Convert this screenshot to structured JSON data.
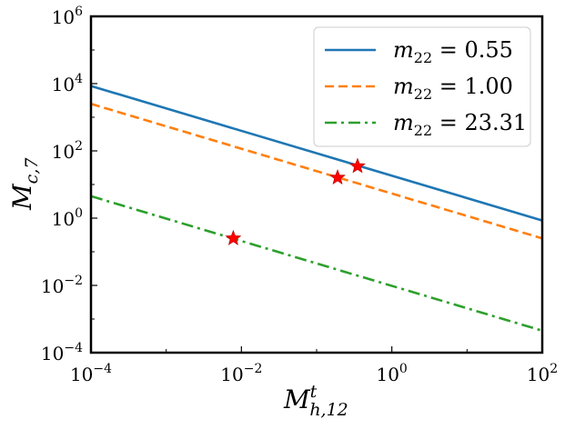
{
  "chart_data": {
    "type": "line",
    "x_scale": "log",
    "y_scale": "log",
    "xlim": [
      0.0001,
      100
    ],
    "ylim": [
      0.0001,
      1000000
    ],
    "x_ticks": [
      {
        "value": 0.0001,
        "base": "10",
        "exp": "−4"
      },
      {
        "value": 0.01,
        "base": "10",
        "exp": "−2"
      },
      {
        "value": 1,
        "base": "10",
        "exp": "0"
      },
      {
        "value": 100,
        "base": "10",
        "exp": "2"
      }
    ],
    "y_ticks": [
      {
        "value": 0.0001,
        "base": "10",
        "exp": "−4"
      },
      {
        "value": 0.01,
        "base": "10",
        "exp": "−2"
      },
      {
        "value": 1,
        "base": "10",
        "exp": "0"
      },
      {
        "value": 100,
        "base": "10",
        "exp": "2"
      },
      {
        "value": 10000,
        "base": "10",
        "exp": "4"
      },
      {
        "value": 1000000,
        "base": "10",
        "exp": "6"
      }
    ],
    "xlabel": {
      "main": "M",
      "sup": "t",
      "sub": "h,12"
    },
    "ylabel": {
      "main": "M",
      "sub": "c,7"
    },
    "legend_position": "top-right",
    "series": [
      {
        "name": "m22 = 0.55",
        "label_main": "m",
        "label_sub": "22",
        "label_value": " = 0.55",
        "color": "#1f77b4",
        "style": "solid",
        "points": [
          [
            0.0001,
            8500
          ],
          [
            100,
            0.85
          ]
        ]
      },
      {
        "name": "m22 = 1.00",
        "label_main": "m",
        "label_sub": "22",
        "label_value": " = 1.00",
        "color": "#ff7f0e",
        "style": "dashed",
        "points": [
          [
            0.0001,
            2500
          ],
          [
            100,
            0.25
          ]
        ]
      },
      {
        "name": "m22 = 23.31",
        "label_main": "m",
        "label_sub": "22",
        "label_value": " = 23.31",
        "color": "#2ca02c",
        "style": "dashdot",
        "points": [
          [
            0.0001,
            4.5
          ],
          [
            100,
            0.00045
          ]
        ]
      }
    ],
    "markers": {
      "shape": "star",
      "color": "#ff0000",
      "points": [
        [
          0.35,
          35
        ],
        [
          0.19,
          16
        ],
        [
          0.0078,
          0.25
        ]
      ]
    }
  }
}
